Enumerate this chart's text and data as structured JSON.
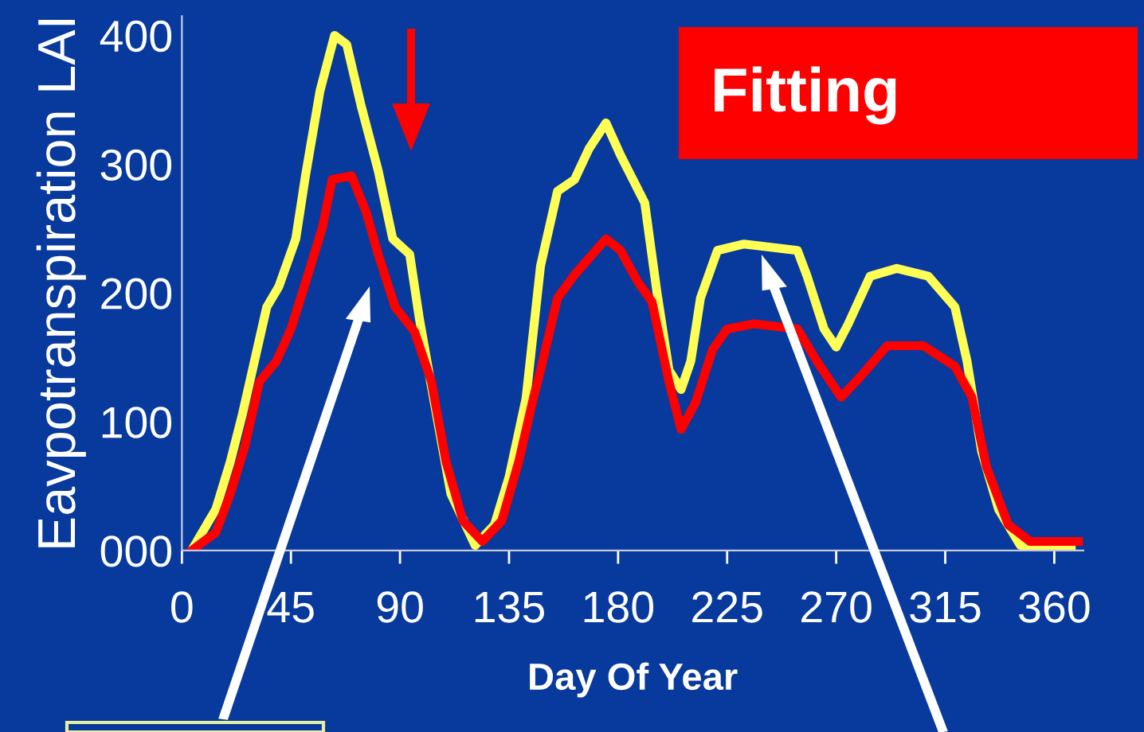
{
  "chart_data": {
    "type": "line",
    "xlabel": "Day Of Year",
    "ylabel": "Eavpotranspiration LAI",
    "annotations": [
      "Fitting"
    ],
    "xlim": [
      0,
      372
    ],
    "xticks": [
      0,
      45,
      90,
      135,
      180,
      225,
      270,
      315,
      360
    ],
    "ylim": [
      0,
      415
    ],
    "yticks": [
      {
        "value": 0,
        "label": "000"
      },
      100,
      200,
      300,
      400
    ],
    "grid": false,
    "legend": false,
    "marker": "none",
    "line_style": "solid",
    "series": [
      {
        "color": "#ffff55",
        "x": [
          4,
          14,
          20,
          25,
          35,
          40,
          47,
          51,
          57,
          63,
          68,
          74,
          81,
          87,
          94,
          98,
          105,
          111,
          121,
          129,
          135,
          142,
          148,
          155,
          162,
          168,
          175,
          181,
          191,
          196,
          201,
          206,
          210,
          214,
          221,
          232,
          254,
          258,
          265,
          270,
          275,
          284,
          295,
          308,
          319,
          324,
          330,
          337,
          346,
          367
        ],
        "values": [
          0,
          32,
          69,
          106,
          189,
          205,
          242,
          291,
          357,
          400,
          393,
          345,
          295,
          242,
          230,
          180,
          106,
          44,
          4,
          20,
          57,
          118,
          221,
          279,
          288,
          312,
          332,
          307,
          270,
          201,
          140,
          125,
          147,
          196,
          233,
          238,
          233,
          213,
          172,
          158,
          176,
          213,
          219,
          213,
          189,
          147,
          77,
          32,
          4,
          4
        ]
      },
      {
        "color": "#ff0000",
        "x": [
          4,
          14,
          20,
          26,
          32,
          39,
          45,
          52,
          58,
          62,
          70,
          76,
          81,
          88,
          96,
          103,
          109,
          116,
          124,
          132,
          139,
          145,
          148,
          155,
          162,
          175,
          181,
          188,
          194,
          201,
          206,
          212,
          219,
          225,
          236,
          254,
          262,
          272,
          280,
          291,
          306,
          319,
          326,
          332,
          341,
          350,
          370
        ],
        "values": [
          0,
          14,
          44,
          81,
          131,
          147,
          172,
          214,
          251,
          288,
          291,
          263,
          230,
          189,
          170,
          131,
          69,
          23,
          7,
          23,
          69,
          118,
          140,
          196,
          214,
          242,
          233,
          209,
          193,
          131,
          94,
          115,
          156,
          172,
          176,
          172,
          147,
          119,
          135,
          159,
          159,
          143,
          119,
          65,
          20,
          7,
          7
        ]
      }
    ]
  }
}
